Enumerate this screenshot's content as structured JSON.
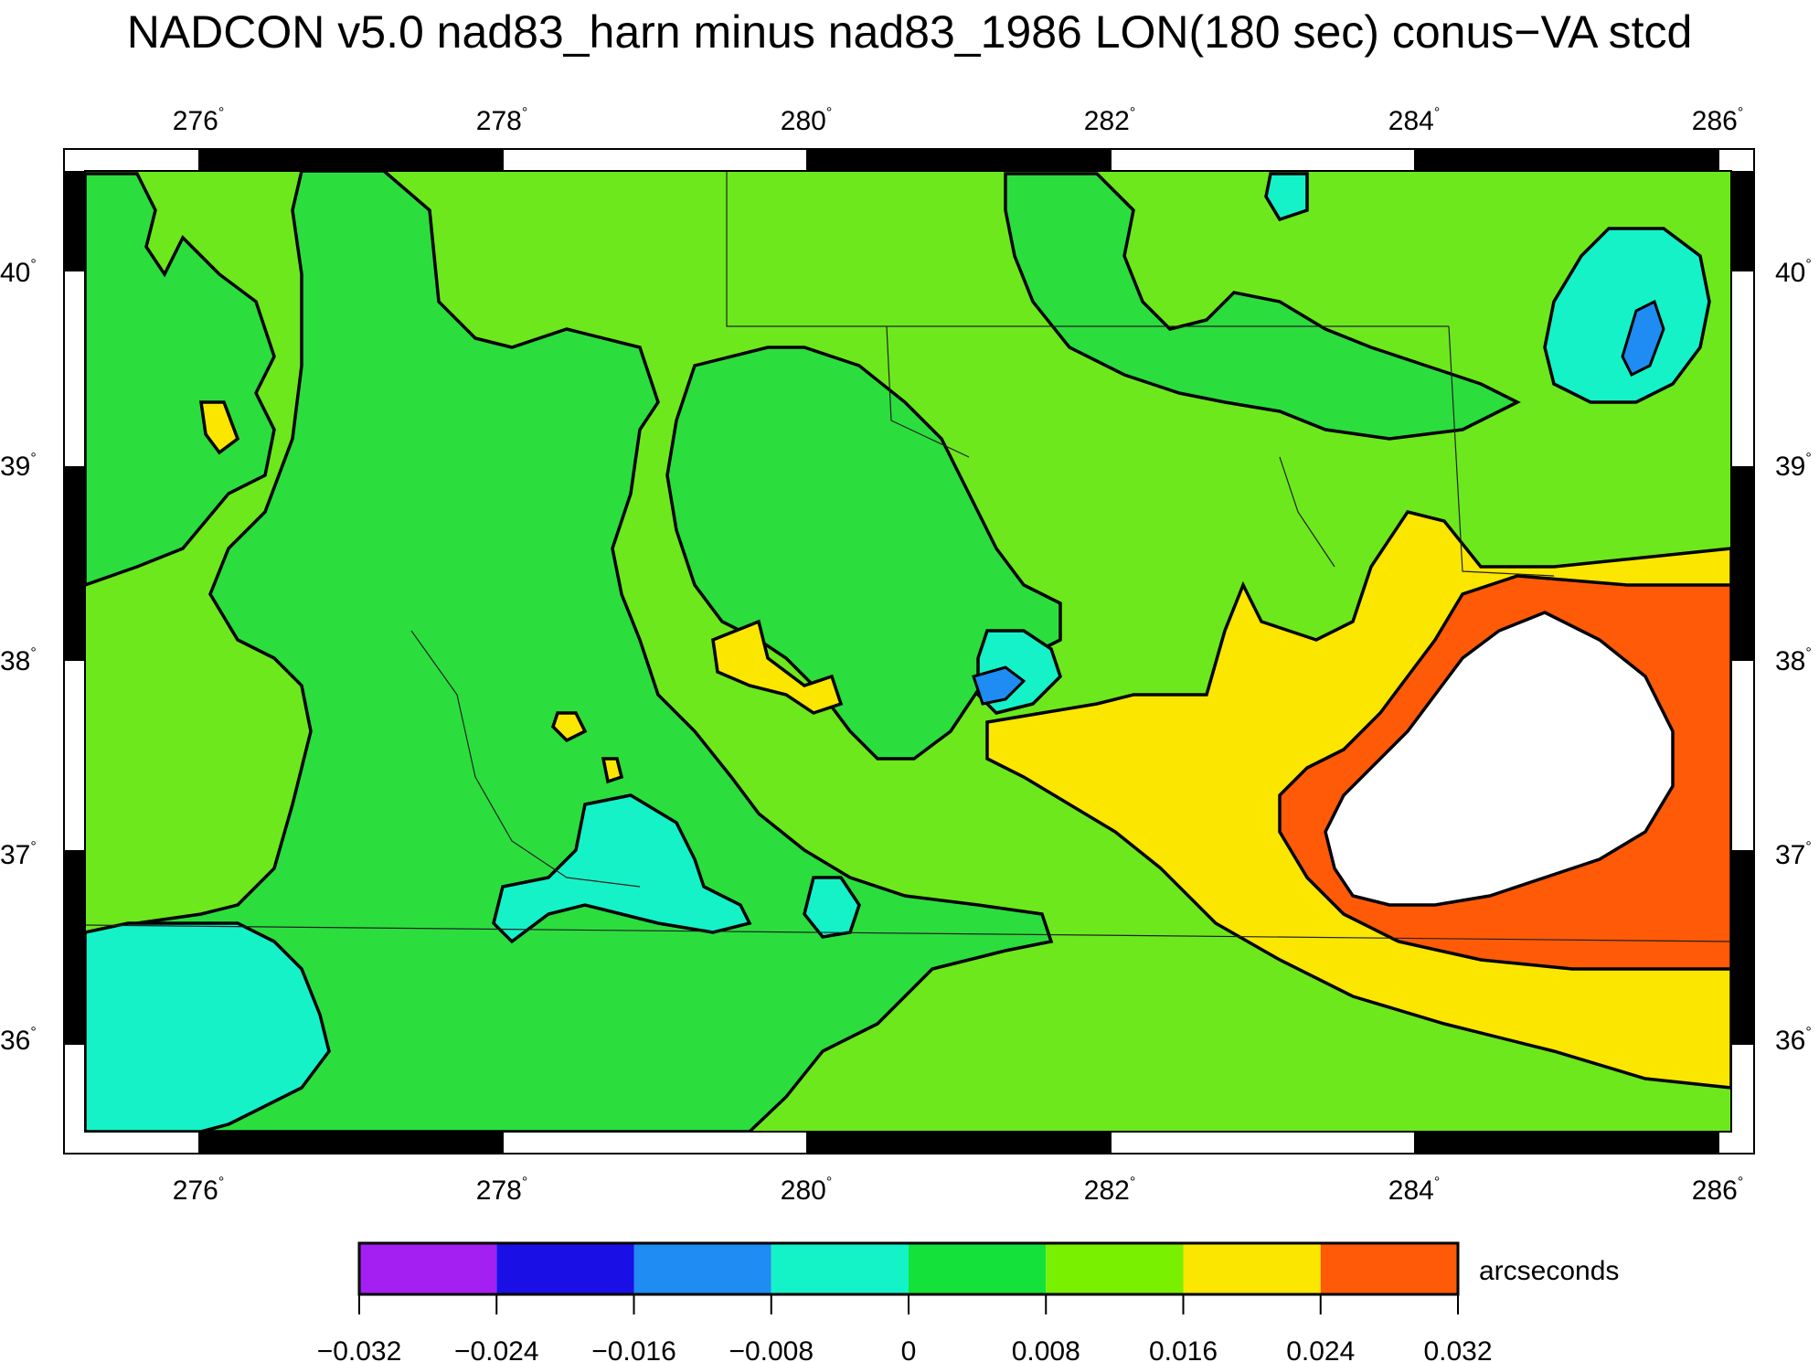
{
  "title": "NADCON v5.0 nad83_harn minus nad83_1986 LON(180 sec) conus−VA stcd",
  "map": {
    "lon_range": [
      275.2,
      286.1
    ],
    "lat_range": [
      35.5,
      40.5
    ],
    "lon_ticks": [
      "276",
      "278",
      "280",
      "282",
      "284",
      "286"
    ],
    "lat_ticks": [
      "40",
      "39",
      "38",
      "37",
      "36"
    ],
    "degree_symbol": "°"
  },
  "legend": {
    "unit": "arcseconds",
    "tick_labels": [
      "−0.032",
      "−0.024",
      "−0.016",
      "−0.008",
      "0",
      "0.008",
      "0.016",
      "0.024",
      "0.032"
    ],
    "colors": [
      "#a31ff2",
      "#1a10e6",
      "#1e8cf2",
      "#14f2c8",
      "#14e23a",
      "#78f000",
      "#fbe600",
      "#ff5a08"
    ]
  },
  "colors": {
    "background_field": "#6de81c",
    "green_dark": "#2bde3e",
    "cyan": "#15f2c8",
    "blue": "#1e8cf2",
    "yellow": "#fbe600",
    "orange": "#ff5a08",
    "white": "#ffffff"
  }
}
